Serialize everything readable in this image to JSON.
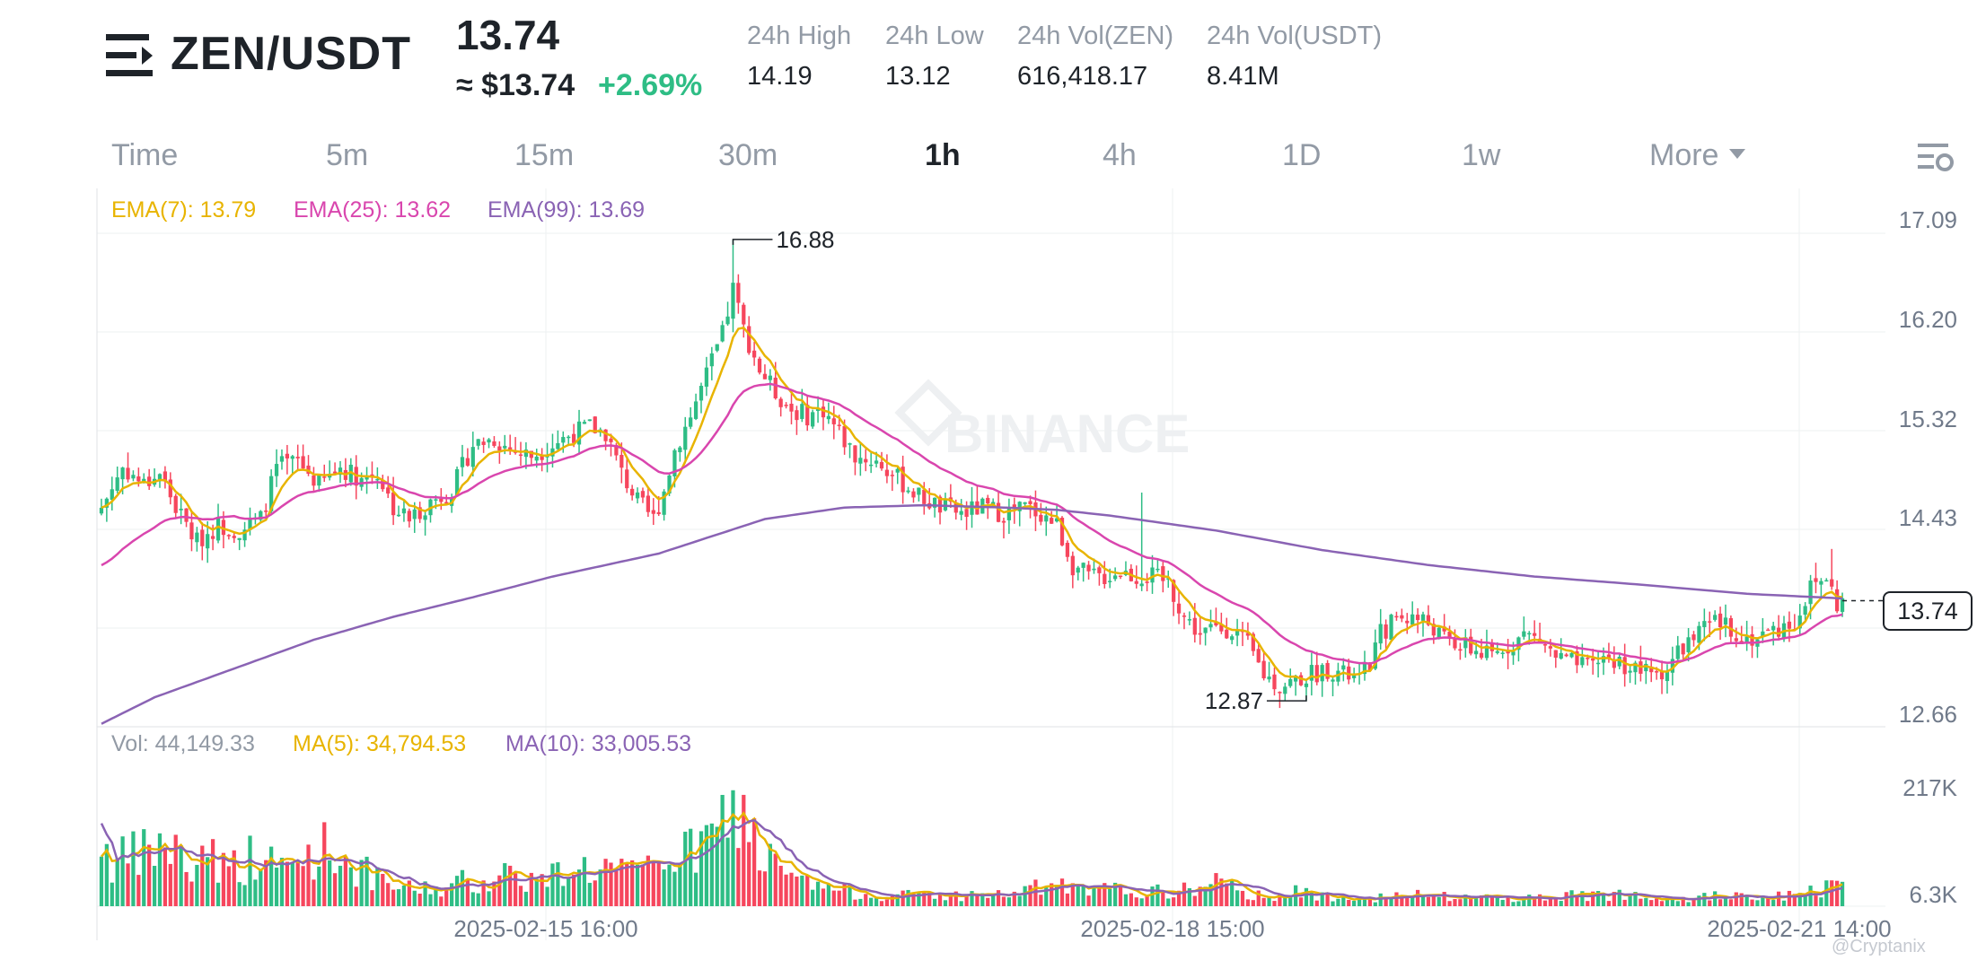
{
  "header": {
    "pair": "ZEN/USDT",
    "last_price": "13.74",
    "price_usd": "≈ $13.74",
    "change": "+2.69%",
    "stats": [
      {
        "label": "24h High",
        "value": "14.19"
      },
      {
        "label": "24h Low",
        "value": "13.12"
      },
      {
        "label": "24h Vol(ZEN)",
        "value": "616,418.17"
      },
      {
        "label": "24h Vol(USDT)",
        "value": "8.41M"
      }
    ]
  },
  "tabs": [
    "Time",
    "5m",
    "15m",
    "30m",
    "1h",
    "4h",
    "1D",
    "1w",
    "More"
  ],
  "active_tab": "1h",
  "legend": {
    "ema7": "EMA(7): 13.79",
    "ema25": "EMA(25): 13.62",
    "ema99": "EMA(99): 13.69",
    "vol": "Vol: 44,149.33",
    "ma5": "MA(5): 34,794.53",
    "ma10": "MA(10): 33,005.53"
  },
  "watermark_logo": "BINANCE",
  "corner_watermark": "@Cryptanix",
  "colors": {
    "up": "#2ebd85",
    "down": "#f6465d",
    "ema7": "#e8b400",
    "ema25": "#d946ae",
    "ema99": "#8a63b4",
    "ma5": "#e8b400",
    "ma10": "#8a63b4"
  },
  "chart_data": {
    "type": "candlestick",
    "interval": "1h",
    "price_ticks": [
      "17.09",
      "16.20",
      "15.32",
      "14.43",
      "12.66"
    ],
    "price_axis": [
      12.66,
      17.09
    ],
    "last_price_tag": "13.74",
    "high_marker": "16.88",
    "low_marker": "12.87",
    "volume_ticks": [
      "217K",
      "6.3K"
    ],
    "volume_axis": [
      6300,
      217000
    ],
    "x_labels": [
      "2025-02-15 16:00",
      "2025-02-18 15:00",
      "2025-02-21 14:00"
    ],
    "close_path": [
      [
        0,
        14.55
      ],
      [
        4,
        14.9
      ],
      [
        8,
        14.75
      ],
      [
        11,
        14.85
      ],
      [
        14,
        14.55
      ],
      [
        18,
        14.25
      ],
      [
        22,
        14.4
      ],
      [
        26,
        14.35
      ],
      [
        30,
        14.45
      ],
      [
        33,
        14.9
      ],
      [
        37,
        14.95
      ],
      [
        41,
        14.75
      ],
      [
        45,
        14.9
      ],
      [
        49,
        14.8
      ],
      [
        52,
        14.85
      ],
      [
        55,
        14.55
      ],
      [
        58,
        14.45
      ],
      [
        62,
        14.6
      ],
      [
        66,
        14.7
      ],
      [
        70,
        15.1
      ],
      [
        74,
        15.15
      ],
      [
        77,
        15.05
      ],
      [
        81,
        15.0
      ],
      [
        85,
        15.1
      ],
      [
        89,
        15.2
      ],
      [
        92,
        15.25
      ],
      [
        95,
        15.2
      ],
      [
        98,
        14.85
      ],
      [
        101,
        14.6
      ],
      [
        104,
        14.45
      ],
      [
        106,
        14.7
      ],
      [
        108,
        15.05
      ],
      [
        111,
        15.35
      ],
      [
        114,
        15.7
      ],
      [
        117,
        16.05
      ],
      [
        119,
        16.45
      ],
      [
        121,
        16.1
      ],
      [
        124,
        15.75
      ],
      [
        127,
        15.55
      ],
      [
        130,
        15.4
      ],
      [
        133,
        15.35
      ],
      [
        136,
        15.4
      ],
      [
        139,
        15.2
      ],
      [
        142,
        15.0
      ],
      [
        146,
        14.95
      ],
      [
        150,
        14.8
      ],
      [
        154,
        14.65
      ],
      [
        158,
        14.55
      ],
      [
        162,
        14.5
      ],
      [
        166,
        14.55
      ],
      [
        170,
        14.5
      ],
      [
        174,
        14.55
      ],
      [
        177,
        14.5
      ],
      [
        180,
        14.4
      ],
      [
        183,
        14.05
      ],
      [
        186,
        13.95
      ],
      [
        189,
        13.95
      ],
      [
        192,
        14.0
      ],
      [
        195,
        13.95
      ],
      [
        198,
        13.95
      ],
      [
        201,
        13.9
      ],
      [
        204,
        13.6
      ],
      [
        207,
        13.45
      ],
      [
        210,
        13.5
      ],
      [
        213,
        13.5
      ],
      [
        216,
        13.35
      ],
      [
        219,
        13.1
      ],
      [
        222,
        13.0
      ],
      [
        225,
        13.05
      ],
      [
        228,
        13.1
      ],
      [
        231,
        13.15
      ],
      [
        234,
        13.1
      ],
      [
        237,
        13.05
      ],
      [
        239,
        13.2
      ],
      [
        241,
        13.45
      ],
      [
        244,
        13.6
      ],
      [
        247,
        13.6
      ],
      [
        250,
        13.55
      ],
      [
        253,
        13.4
      ],
      [
        256,
        13.35
      ],
      [
        259,
        13.3
      ],
      [
        262,
        13.25
      ],
      [
        265,
        13.35
      ],
      [
        268,
        13.45
      ],
      [
        271,
        13.4
      ],
      [
        274,
        13.25
      ],
      [
        277,
        13.2
      ],
      [
        280,
        13.15
      ],
      [
        283,
        13.25
      ],
      [
        286,
        13.2
      ],
      [
        289,
        13.15
      ],
      [
        292,
        13.1
      ],
      [
        295,
        13.15
      ],
      [
        298,
        13.35
      ],
      [
        301,
        13.45
      ],
      [
        304,
        13.55
      ],
      [
        307,
        13.5
      ],
      [
        310,
        13.4
      ],
      [
        313,
        13.45
      ],
      [
        316,
        13.5
      ],
      [
        319,
        13.55
      ],
      [
        322,
        13.85
      ],
      [
        325,
        13.95
      ],
      [
        327,
        13.7
      ],
      [
        328,
        13.74
      ]
    ],
    "ema99_path": [
      [
        0,
        12.67
      ],
      [
        10,
        12.9
      ],
      [
        25,
        13.15
      ],
      [
        40,
        13.4
      ],
      [
        55,
        13.6
      ],
      [
        70,
        13.77
      ],
      [
        85,
        13.95
      ],
      [
        95,
        14.05
      ],
      [
        105,
        14.15
      ],
      [
        115,
        14.3
      ],
      [
        125,
        14.45
      ],
      [
        140,
        14.55
      ],
      [
        155,
        14.57
      ],
      [
        170,
        14.55
      ],
      [
        180,
        14.53
      ],
      [
        190,
        14.48
      ],
      [
        210,
        14.35
      ],
      [
        230,
        14.18
      ],
      [
        250,
        14.05
      ],
      [
        270,
        13.95
      ],
      [
        290,
        13.88
      ],
      [
        310,
        13.8
      ],
      [
        328,
        13.76
      ]
    ],
    "volume_path": [
      [
        0,
        125000
      ],
      [
        2,
        80000
      ],
      [
        5,
        85000
      ],
      [
        8,
        95000
      ],
      [
        11,
        110000
      ],
      [
        14,
        100000
      ],
      [
        17,
        60000
      ],
      [
        20,
        120000
      ],
      [
        23,
        70000
      ],
      [
        26,
        80000
      ],
      [
        29,
        90000
      ],
      [
        32,
        75000
      ],
      [
        35,
        70000
      ],
      [
        38,
        85000
      ],
      [
        41,
        110000
      ],
      [
        44,
        95000
      ],
      [
        47,
        80000
      ],
      [
        50,
        60000
      ],
      [
        53,
        40000
      ],
      [
        56,
        35000
      ],
      [
        59,
        30000
      ],
      [
        62,
        35000
      ],
      [
        65,
        30000
      ],
      [
        68,
        45000
      ],
      [
        71,
        40000
      ],
      [
        74,
        55000
      ],
      [
        77,
        65000
      ],
      [
        80,
        50000
      ],
      [
        83,
        45000
      ],
      [
        86,
        60000
      ],
      [
        89,
        80000
      ],
      [
        92,
        65000
      ],
      [
        95,
        70000
      ],
      [
        98,
        60000
      ],
      [
        101,
        55000
      ],
      [
        104,
        75000
      ],
      [
        107,
        100000
      ],
      [
        110,
        90000
      ],
      [
        113,
        110000
      ],
      [
        116,
        125000
      ],
      [
        119,
        210000
      ],
      [
        121,
        170000
      ],
      [
        124,
        100000
      ],
      [
        127,
        70000
      ],
      [
        130,
        50000
      ],
      [
        133,
        40000
      ],
      [
        136,
        35000
      ],
      [
        139,
        30000
      ],
      [
        142,
        25000
      ],
      [
        146,
        20000
      ],
      [
        150,
        18000
      ],
      [
        155,
        25000
      ],
      [
        160,
        18000
      ],
      [
        165,
        22000
      ],
      [
        170,
        20000
      ],
      [
        175,
        30000
      ],
      [
        180,
        40000
      ],
      [
        185,
        25000
      ],
      [
        190,
        30000
      ],
      [
        195,
        28000
      ],
      [
        200,
        25000
      ],
      [
        205,
        30000
      ],
      [
        210,
        45000
      ],
      [
        215,
        22000
      ],
      [
        220,
        20000
      ],
      [
        225,
        25000
      ],
      [
        230,
        18000
      ],
      [
        235,
        22000
      ],
      [
        240,
        15000
      ],
      [
        245,
        18000
      ],
      [
        250,
        20000
      ],
      [
        255,
        15000
      ],
      [
        260,
        18000
      ],
      [
        265,
        16000
      ],
      [
        270,
        15000
      ],
      [
        275,
        20000
      ],
      [
        280,
        18000
      ],
      [
        285,
        22000
      ],
      [
        290,
        25000
      ],
      [
        295,
        18000
      ],
      [
        300,
        15000
      ],
      [
        305,
        20000
      ],
      [
        310,
        15000
      ],
      [
        315,
        18000
      ],
      [
        320,
        20000
      ],
      [
        325,
        35000
      ],
      [
        328,
        44149
      ]
    ]
  }
}
